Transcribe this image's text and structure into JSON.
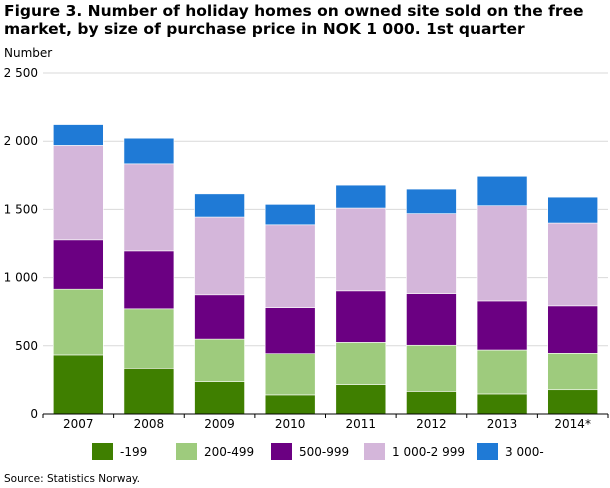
{
  "chart_data": {
    "type": "bar",
    "stacked": true,
    "title": "Figure 3. Number of holiday homes on owned site sold on the free market, by size of purchase price in NOK 1 000.  1st quarter",
    "ylabel": "Number",
    "xlabel": "",
    "ylim": [
      0,
      2500
    ],
    "yticks": [
      0,
      500,
      1000,
      1500,
      2000,
      2500
    ],
    "ytick_labels": [
      "0",
      "500",
      "1 000",
      "1 500",
      "2 000",
      "2 500"
    ],
    "grid": true,
    "legend_position": "bottom",
    "categories": [
      "2007",
      "2008",
      "2009",
      "2010",
      "2011",
      "2012",
      "2013",
      "2014*"
    ],
    "series": [
      {
        "name": "-199",
        "color": "#3f7f00",
        "values": [
          433,
          335,
          237,
          140,
          215,
          166,
          147,
          178
        ]
      },
      {
        "name": "200-499",
        "color": "#9ecb7d",
        "values": [
          482,
          436,
          312,
          302,
          310,
          338,
          322,
          267
        ]
      },
      {
        "name": "500-999",
        "color": "#6b0082",
        "values": [
          362,
          425,
          325,
          338,
          378,
          378,
          360,
          348
        ]
      },
      {
        "name": "1 000-2 999",
        "color": "#d4b6da",
        "values": [
          692,
          638,
          570,
          607,
          607,
          587,
          698,
          607
        ]
      },
      {
        "name": "3 000-",
        "color": "#1f7ad6",
        "values": [
          153,
          188,
          170,
          150,
          168,
          180,
          216,
          190
        ]
      }
    ]
  },
  "source": "Source: Statistics Norway."
}
